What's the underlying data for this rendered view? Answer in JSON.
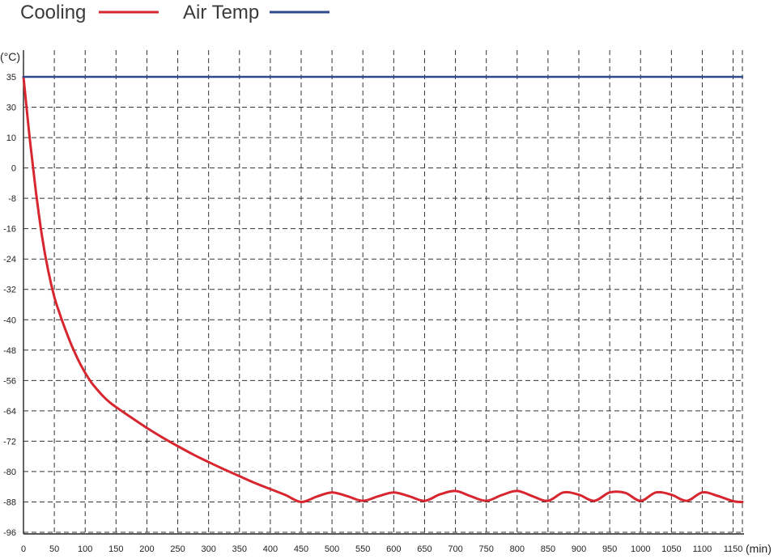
{
  "chart_data": {
    "type": "line",
    "legend": {
      "placement": "top-left"
    },
    "y_unit_label": "(°C)",
    "x_unit_label": "(min)",
    "y_ticks": [
      35,
      30,
      10,
      0,
      -8,
      -16,
      -24,
      -32,
      -40,
      -48,
      -56,
      -64,
      -72,
      -80,
      -88,
      -96
    ],
    "x_ticks": [
      0,
      50,
      100,
      150,
      200,
      250,
      300,
      350,
      400,
      450,
      500,
      550,
      600,
      650,
      700,
      750,
      800,
      850,
      900,
      950,
      1000,
      1050,
      1100,
      1150
    ],
    "grid": true,
    "series": [
      {
        "name": "Cooling",
        "color": "#d7262f",
        "x": [
          0,
          10,
          20,
          30,
          40,
          50,
          60,
          70,
          80,
          90,
          100,
          110,
          120,
          130,
          140,
          150,
          175,
          200,
          225,
          250,
          275,
          300,
          325,
          350,
          375,
          400,
          425,
          450,
          475,
          500,
          525,
          550,
          575,
          600,
          625,
          650,
          675,
          700,
          725,
          750,
          775,
          800,
          825,
          850,
          875,
          900,
          925,
          950,
          975,
          1000,
          1025,
          1050,
          1075,
          1100,
          1125,
          1150,
          1165
        ],
        "y": [
          35,
          10,
          -6,
          -18,
          -27,
          -34,
          -39,
          -43.5,
          -47.5,
          -51,
          -54,
          -56.5,
          -58.5,
          -60.3,
          -61.8,
          -63,
          -65.8,
          -68.5,
          -71,
          -73.3,
          -75.5,
          -77.5,
          -79.4,
          -81.2,
          -83,
          -84.6,
          -86.2,
          -88,
          -86.6,
          -85.5,
          -86.5,
          -87.7,
          -86.5,
          -85.5,
          -86.5,
          -87.7,
          -86,
          -85.1,
          -86.5,
          -87.7,
          -86.2,
          -85.1,
          -86.5,
          -87.7,
          -85.5,
          -86.1,
          -87.7,
          -85.5,
          -85.6,
          -87.7,
          -85.5,
          -86.1,
          -87.7,
          -85.5,
          -86.4,
          -87.8,
          -88
        ]
      },
      {
        "name": "Air Temp",
        "color": "#2f4a8c",
        "x": [
          0,
          1165
        ],
        "y": [
          35,
          35
        ]
      }
    ]
  }
}
